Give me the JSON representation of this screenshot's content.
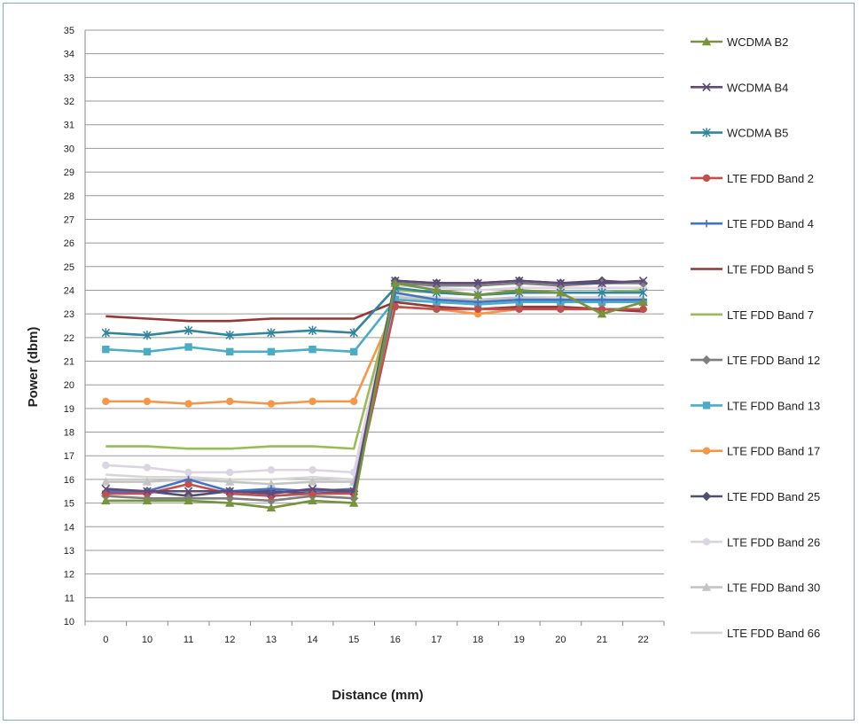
{
  "chart_data": {
    "type": "line",
    "title": "",
    "xlabel": "Distance (mm)",
    "ylabel": "Power (dbm)",
    "ylim": [
      10,
      35
    ],
    "yticks": [
      10,
      11,
      12,
      13,
      14,
      15,
      16,
      17,
      18,
      19,
      20,
      21,
      22,
      23,
      24,
      25,
      26,
      27,
      28,
      29,
      30,
      31,
      32,
      33,
      34,
      35
    ],
    "categories": [
      "0",
      "10",
      "11",
      "12",
      "13",
      "14",
      "15",
      "16",
      "17",
      "18",
      "19",
      "20",
      "21",
      "22"
    ],
    "grid": "horizontal",
    "legend_position": "right",
    "series": [
      {
        "name": "WCDMA B2",
        "color": "#77933c",
        "marker": "triangle",
        "values": [
          15.1,
          15.1,
          15.1,
          15.0,
          14.8,
          15.1,
          15.0,
          24.3,
          24.0,
          23.8,
          24.0,
          23.9,
          23.0,
          23.5
        ]
      },
      {
        "name": "WCDMA B4",
        "color": "#604a7b",
        "marker": "x",
        "values": [
          15.6,
          15.5,
          15.5,
          15.5,
          15.4,
          15.6,
          15.5,
          24.4,
          24.3,
          24.3,
          24.4,
          24.3,
          24.3,
          24.4
        ]
      },
      {
        "name": "WCDMA B5",
        "color": "#31859c",
        "marker": "star",
        "values": [
          22.2,
          22.1,
          22.3,
          22.1,
          22.2,
          22.3,
          22.2,
          24.1,
          23.9,
          23.8,
          23.9,
          23.9,
          23.9,
          23.9
        ]
      },
      {
        "name": "LTE FDD Band 2",
        "color": "#c0504d",
        "marker": "circle",
        "values": [
          15.4,
          15.4,
          15.8,
          15.4,
          15.3,
          15.4,
          15.4,
          23.3,
          23.2,
          23.2,
          23.2,
          23.2,
          23.2,
          23.2
        ]
      },
      {
        "name": "LTE FDD Band 4",
        "color": "#4472c4",
        "marker": "plus",
        "values": [
          15.5,
          15.5,
          16.0,
          15.5,
          15.6,
          15.5,
          15.6,
          23.9,
          23.6,
          23.5,
          23.6,
          23.6,
          23.6,
          23.6
        ]
      },
      {
        "name": "LTE FDD Band 5",
        "color": "#953735",
        "marker": "none",
        "values": [
          22.9,
          22.8,
          22.7,
          22.7,
          22.8,
          22.8,
          22.8,
          23.5,
          23.3,
          23.2,
          23.3,
          23.3,
          23.2,
          23.1
        ]
      },
      {
        "name": "LTE FDD Band 7",
        "color": "#9bbb59",
        "marker": "none",
        "values": [
          17.4,
          17.4,
          17.3,
          17.3,
          17.4,
          17.4,
          17.3,
          24.0,
          23.9,
          23.8,
          23.9,
          23.9,
          23.9,
          24.0
        ]
      },
      {
        "name": "LTE FDD Band 12",
        "color": "#7f7f7f",
        "marker": "diamond",
        "values": [
          15.3,
          15.2,
          15.2,
          15.2,
          15.1,
          15.3,
          15.2,
          24.3,
          24.2,
          24.2,
          24.3,
          24.2,
          24.3,
          24.3
        ]
      },
      {
        "name": "LTE FDD Band 13",
        "color": "#4bacc6",
        "marker": "square",
        "values": [
          21.5,
          21.4,
          21.6,
          21.4,
          21.4,
          21.5,
          21.4,
          23.6,
          23.5,
          23.4,
          23.5,
          23.5,
          23.5,
          23.5
        ]
      },
      {
        "name": "LTE FDD Band 17",
        "color": "#f79646",
        "marker": "circle",
        "values": [
          19.3,
          19.3,
          19.2,
          19.3,
          19.2,
          19.3,
          19.3,
          23.3,
          23.2,
          23.0,
          23.2,
          23.2,
          23.2,
          23.2
        ]
      },
      {
        "name": "LTE FDD Band 25",
        "color": "#4f4f6f",
        "marker": "diamond",
        "values": [
          15.4,
          15.5,
          15.3,
          15.5,
          15.5,
          15.4,
          15.5,
          24.4,
          24.3,
          24.3,
          24.4,
          24.3,
          24.4,
          24.3
        ]
      },
      {
        "name": "LTE FDD Band 26",
        "color": "#dcd3e3",
        "marker": "circle",
        "values": [
          16.6,
          16.5,
          16.3,
          16.3,
          16.4,
          16.4,
          16.3,
          24.2,
          24.1,
          24.0,
          24.1,
          24.1,
          24.1,
          24.1
        ]
      },
      {
        "name": "LTE FDD Band 30",
        "color": "#c4c4c4",
        "marker": "triangle",
        "values": [
          15.9,
          15.9,
          16.0,
          15.9,
          15.8,
          15.9,
          15.9,
          23.7,
          23.6,
          23.6,
          23.7,
          23.6,
          23.6,
          23.6
        ]
      },
      {
        "name": "LTE FDD Band 66",
        "color": "#d6d6d6",
        "marker": "none",
        "values": [
          16.2,
          16.1,
          16.1,
          16.0,
          16.0,
          16.1,
          16.0,
          23.8,
          23.7,
          23.6,
          23.7,
          23.7,
          23.7,
          23.7
        ]
      }
    ]
  }
}
